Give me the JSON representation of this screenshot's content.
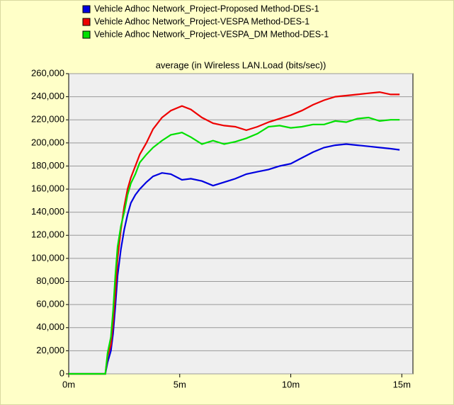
{
  "chart_data": {
    "type": "line",
    "title": "average (in Wireless LAN.Load (bits/sec))",
    "x": [
      0,
      1.65,
      1.75,
      1.9,
      2.0,
      2.1,
      2.2,
      2.35,
      2.5,
      2.65,
      2.8,
      3.0,
      3.2,
      3.5,
      3.8,
      4.2,
      4.6,
      5.1,
      5.5,
      6.0,
      6.5,
      7.0,
      7.5,
      8.0,
      8.5,
      9.0,
      9.5,
      10.0,
      10.5,
      11.0,
      11.5,
      12.0,
      12.5,
      13.0,
      13.5,
      14.0,
      14.5,
      14.9
    ],
    "series": [
      {
        "name": "Vehicle Adhoc Network_Project-Proposed Method-DES-1",
        "color": "#0000e0",
        "values": [
          0,
          0,
          10000,
          20000,
          35000,
          58000,
          85000,
          108000,
          125000,
          138000,
          148000,
          155000,
          160000,
          166000,
          171000,
          174000,
          173000,
          168000,
          169000,
          167000,
          163000,
          166000,
          169000,
          173000,
          175000,
          177000,
          180000,
          182000,
          187000,
          192000,
          196000,
          198000,
          199000,
          198000,
          197000,
          196000,
          195000,
          194000
        ]
      },
      {
        "name": "Vehicle Adhoc Network_Project-VESPA Method-DES-1",
        "color": "#ee0000",
        "values": [
          0,
          0,
          15000,
          25000,
          45000,
          70000,
          100000,
          125000,
          145000,
          160000,
          170000,
          180000,
          190000,
          200000,
          212000,
          222000,
          228000,
          232000,
          229000,
          222000,
          217000,
          215000,
          214000,
          211000,
          214000,
          218000,
          221000,
          224000,
          228000,
          233000,
          237000,
          240000,
          241000,
          242000,
          243000,
          244000,
          242000,
          242000
        ]
      },
      {
        "name": "Vehicle Adhoc Network_Project-VESPA_DM Method-DES-1",
        "color": "#00e000",
        "values": [
          0,
          0,
          18000,
          32000,
          55000,
          85000,
          110000,
          128000,
          140000,
          155000,
          165000,
          173000,
          183000,
          190000,
          196000,
          202000,
          207000,
          209000,
          205000,
          199000,
          202000,
          199000,
          201000,
          204000,
          208000,
          214000,
          215000,
          213000,
          214000,
          216000,
          216000,
          219000,
          218000,
          221000,
          222000,
          219000,
          220000,
          220000
        ]
      }
    ],
    "xlim": [
      0,
      15.5
    ],
    "xticks": [
      {
        "value": 0,
        "label": "0m"
      },
      {
        "value": 5,
        "label": "5m"
      },
      {
        "value": 10,
        "label": "10m"
      },
      {
        "value": 15,
        "label": "15m"
      }
    ],
    "ylim": [
      0,
      260000
    ],
    "yticks": [
      0,
      {
        "value": 20000,
        "label": "20,000"
      },
      {
        "value": 40000,
        "label": "40,000"
      },
      {
        "value": 60000,
        "label": "60,000"
      },
      {
        "value": 80000,
        "label": "80,000"
      },
      {
        "value": 100000,
        "label": "100,000"
      },
      {
        "value": 120000,
        "label": "120,000"
      },
      {
        "value": 140000,
        "label": "140,000"
      },
      {
        "value": 160000,
        "label": "160,000"
      },
      {
        "value": 180000,
        "label": "180,000"
      },
      {
        "value": 200000,
        "label": "200,000"
      },
      {
        "value": 220000,
        "label": "220,000"
      },
      {
        "value": 240000,
        "label": "240,000"
      },
      {
        "value": 260000,
        "label": "260,000"
      }
    ],
    "grid": true
  }
}
